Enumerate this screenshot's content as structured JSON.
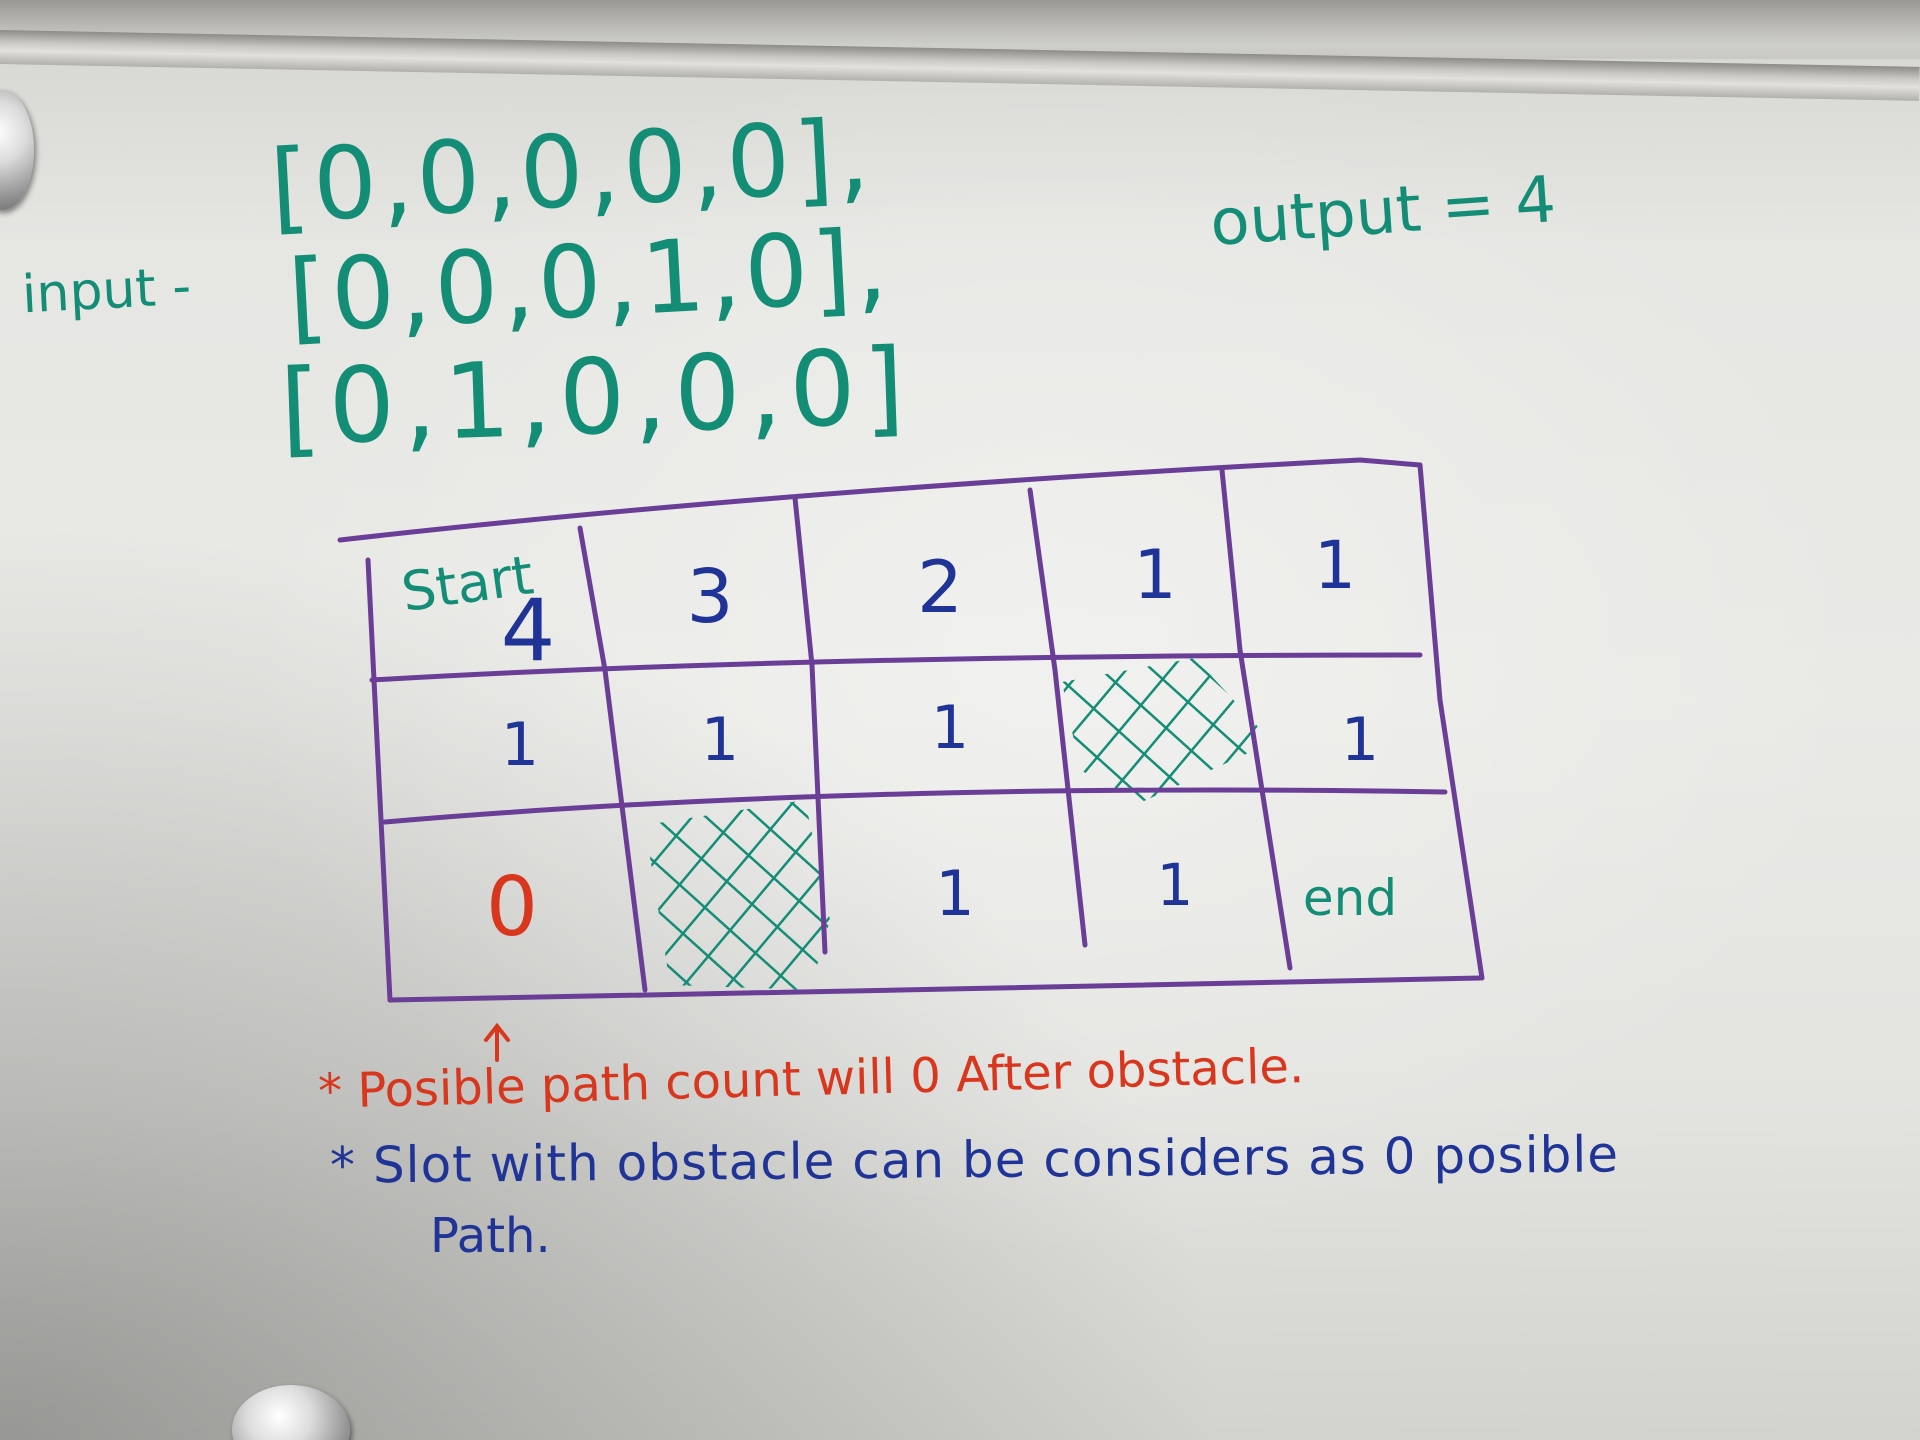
{
  "whiteboard": {
    "input_label": "input -",
    "input_rows": [
      "[0,0,0,0,0],",
      "[0,0,0,1,0],",
      "[0,1,0,0,0]"
    ],
    "output_text": "output = 4",
    "grid": {
      "rows": [
        [
          "4",
          "3",
          "2",
          "1",
          "1"
        ],
        [
          "1",
          "1",
          "1",
          "",
          "1"
        ],
        [
          "0",
          "",
          "1",
          "1",
          ""
        ]
      ],
      "start_label": "Start",
      "end_label": "end",
      "obstacles": [
        [
          1,
          3
        ],
        [
          2,
          1
        ]
      ],
      "zero_cell": [
        2,
        0
      ]
    },
    "notes": [
      "* Posible path count will 0 After obstacle.",
      "* Slot with obstacle can be considers as 0 posible",
      "Path."
    ],
    "colors": {
      "teal": "#138d76",
      "navy": "#1f3496",
      "red": "#d9371d",
      "purple": "#6a3e96"
    }
  }
}
